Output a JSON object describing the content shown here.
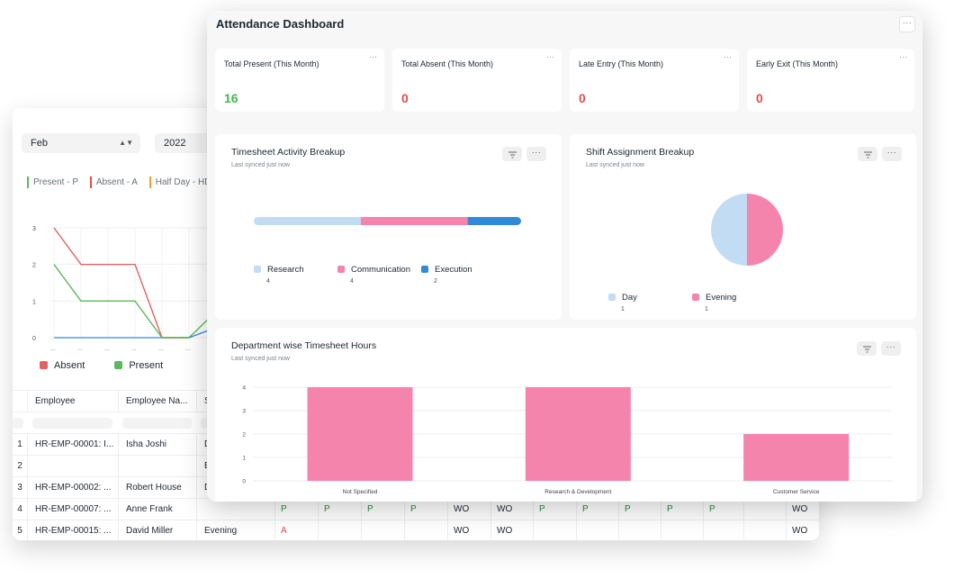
{
  "report": {
    "month_select": {
      "value": "Feb"
    },
    "year_select": {
      "value": "2022"
    },
    "status_legend": [
      {
        "label": "Present - P",
        "color": "#5cb85c"
      },
      {
        "label": "Absent - A",
        "color": "#e24c4c"
      },
      {
        "label": "Half Day - HD",
        "color": "#f0a030"
      }
    ],
    "line_chart": {
      "y_ticks": [
        "3",
        "2",
        "1",
        "0"
      ],
      "x_tick_label": "...",
      "legend": [
        {
          "label": "Absent",
          "color": "#e06262"
        },
        {
          "label": "Present",
          "color": "#5cb85c"
        }
      ]
    },
    "grid": {
      "columns": [
        "Employee",
        "Employee Na...",
        "S"
      ],
      "rows": [
        {
          "no": "1",
          "employee": "HR-EMP-00001: I...",
          "name": "Isha Joshi",
          "shift": "D"
        },
        {
          "no": "2",
          "employee": "",
          "name": "",
          "shift": "E"
        },
        {
          "no": "3",
          "employee": "HR-EMP-00002: ...",
          "name": "Robert House",
          "shift": "D"
        },
        {
          "no": "4",
          "employee": "HR-EMP-00007: ...",
          "name": "Anne Frank",
          "shift": "",
          "marks": [
            "P",
            "P",
            "P",
            "P",
            "WO",
            "WO",
            "P",
            "P",
            "P",
            "P",
            "P",
            "",
            "WO",
            "WO"
          ]
        },
        {
          "no": "5",
          "employee": "HR-EMP-00015: ...",
          "name": "David Miller",
          "shift": "Evening",
          "marks": [
            "A",
            "",
            "",
            "",
            "WO",
            "WO",
            "",
            "",
            "",
            "",
            "",
            "",
            "WO",
            "WO"
          ]
        }
      ]
    }
  },
  "dashboard": {
    "title": "Attendance Dashboard",
    "menu_label": "···",
    "number_cards": [
      {
        "label": "Total Present (This Month)",
        "value": "16",
        "tone": "green"
      },
      {
        "label": "Total Absent (This Month)",
        "value": "0",
        "tone": "red"
      },
      {
        "label": "Late Entry (This Month)",
        "value": "0",
        "tone": "red"
      },
      {
        "label": "Early Exit (This Month)",
        "value": "0",
        "tone": "red"
      }
    ],
    "card_menu_label": "···",
    "timesheet_chart": {
      "title": "Timesheet Activity Breakup",
      "subtitle": "Last synced just now",
      "segments": [
        {
          "label": "Research",
          "value": 4,
          "value_label": "4",
          "color": "#c2ddf3"
        },
        {
          "label": "Communication",
          "value": 4,
          "value_label": "4",
          "color": "#f584ac"
        },
        {
          "label": "Execution",
          "value": 2,
          "value_label": "2",
          "color": "#318ad8"
        }
      ]
    },
    "shift_chart": {
      "title": "Shift Assignment Breakup",
      "subtitle": "Last synced just now",
      "slices": [
        {
          "label": "Day",
          "value": 1,
          "value_label": "1",
          "color": "#c2ddf3"
        },
        {
          "label": "Evening",
          "value": 1,
          "value_label": "1",
          "color": "#f584ac"
        }
      ]
    },
    "department_chart": {
      "title": "Department wise Timesheet Hours",
      "subtitle": "Last synced just now"
    }
  },
  "chart_data": [
    {
      "type": "line",
      "x": [
        "...",
        "...",
        "...",
        "...",
        "...",
        "..."
      ],
      "series": [
        {
          "name": "Absent",
          "color": "#e06262",
          "values": [
            3,
            2,
            2,
            2,
            0,
            0
          ]
        },
        {
          "name": "Present",
          "color": "#5cb85c",
          "values": [
            2,
            1,
            1,
            1,
            0,
            0
          ]
        }
      ],
      "ylim": [
        0,
        3
      ],
      "y_ticks": [
        0,
        1,
        2,
        3
      ],
      "legend_position": "bottom",
      "grid": true
    },
    {
      "type": "bar",
      "title": "Timesheet Activity Breakup",
      "orientation": "horizontal-stacked",
      "categories": [
        "Research",
        "Communication",
        "Execution"
      ],
      "values": [
        4,
        4,
        2
      ]
    },
    {
      "type": "pie",
      "title": "Shift Assignment Breakup",
      "categories": [
        "Day",
        "Evening"
      ],
      "values": [
        1,
        1
      ]
    },
    {
      "type": "bar",
      "title": "Department wise Timesheet Hours",
      "categories": [
        "Not Specified",
        "Research & Development",
        "Customer Service"
      ],
      "values": [
        4,
        4,
        2
      ],
      "ylim": [
        0,
        4
      ],
      "y_ticks": [
        0,
        1,
        2,
        3,
        4
      ],
      "bar_color": "#f584ac",
      "grid": true
    }
  ]
}
